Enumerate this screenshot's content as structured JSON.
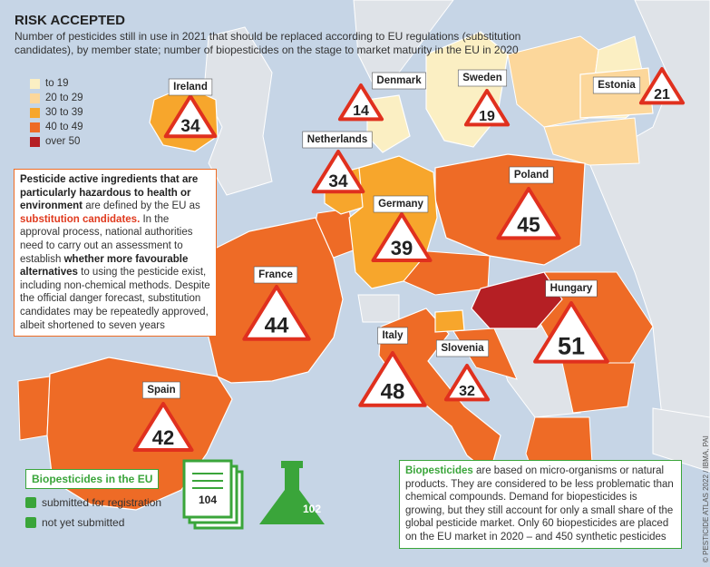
{
  "header": {
    "title": "RISK ACCEPTED",
    "subtitle": "Number of pesticides still in use in 2021 that should be replaced according to EU regulations (substitution candidates), by member state; number of biopesticides on the stage to market maturity in the EU in 2020"
  },
  "legend": [
    {
      "label": "to 19",
      "color": "#fbefc3"
    },
    {
      "label": "20 to 29",
      "color": "#fcd79b"
    },
    {
      "label": "30 to 39",
      "color": "#f7a62c"
    },
    {
      "label": "40 to 49",
      "color": "#ee6b26"
    },
    {
      "label": "over 50",
      "color": "#b51f24"
    }
  ],
  "countries": [
    {
      "name": "Ireland",
      "value": 34,
      "color": "#f7a62c"
    },
    {
      "name": "Denmark",
      "value": 14,
      "color": "#fbefc3"
    },
    {
      "name": "Sweden",
      "value": 19,
      "color": "#fbefc3"
    },
    {
      "name": "Estonia",
      "value": 21,
      "color": "#fcd79b"
    },
    {
      "name": "Netherlands",
      "value": 34,
      "color": "#f7a62c"
    },
    {
      "name": "Poland",
      "value": 45,
      "color": "#ee6b26"
    },
    {
      "name": "Germany",
      "value": 39,
      "color": "#f7a62c"
    },
    {
      "name": "France",
      "value": 44,
      "color": "#ee6b26"
    },
    {
      "name": "Hungary",
      "value": 51,
      "color": "#b51f24"
    },
    {
      "name": "Italy",
      "value": 48,
      "color": "#ee6b26"
    },
    {
      "name": "Slovenia",
      "value": 32,
      "color": "#f7a62c"
    },
    {
      "name": "Spain",
      "value": 42,
      "color": "#ee6b26"
    }
  ],
  "info_box": {
    "segments": [
      {
        "text": "Pesticide active ingredients that are particularly hazardous to health or environment",
        "style": "bold"
      },
      {
        "text": " are defined by the EU as ",
        "style": "normal"
      },
      {
        "text": "substitution candidates.",
        "style": "highlight"
      },
      {
        "text": " In the approval process, national authorities need to carry out an assessment to establish ",
        "style": "normal"
      },
      {
        "text": "whether more favourable alternatives",
        "style": "bold"
      },
      {
        "text": " to using the pesticide exist, including non-chemical methods. Despite the official danger forecast, substitution candidates may be repeatedly approved, albeit shortened to seven years",
        "style": "normal"
      }
    ]
  },
  "biopesticides": {
    "title": "Biopesticides in the EU",
    "items": [
      {
        "label": "submitted for registration",
        "value": 104
      },
      {
        "label": "not yet submitted",
        "value": 102
      }
    ]
  },
  "note": {
    "segments": [
      {
        "text": "Biopesticides",
        "style": "bold"
      },
      {
        "text": " are based on micro-organisms or natural products. They are considered to be less problematic than chemical compounds. Demand for biopesticides is growing, but they still account for only a small share of the global pesticide market. Only 60 biopesticides are placed on the EU market in 2020 – and 450 synthetic pesticides",
        "style": "normal"
      }
    ]
  },
  "credit": "© PESTICIDE ATLAS 2022 / IBMA, PAI"
}
